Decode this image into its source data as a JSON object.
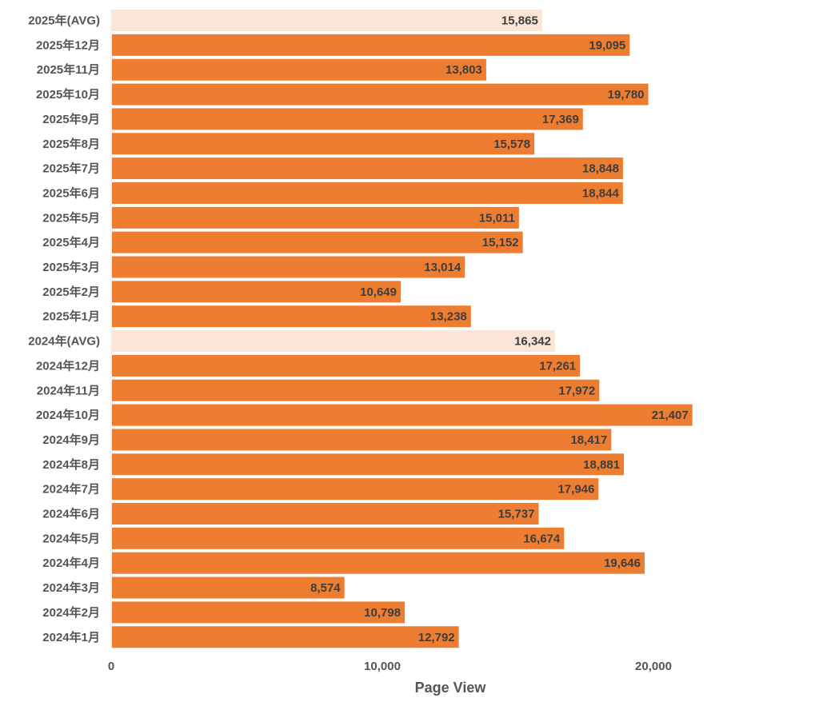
{
  "chart_data": {
    "type": "bar",
    "orientation": "horizontal",
    "title": "",
    "xlabel": "Page View",
    "ylabel": "",
    "xlim": [
      0,
      26500
    ],
    "xticks": [
      0,
      10000,
      20000
    ],
    "xtick_labels": [
      "0",
      "10,000",
      "20,000"
    ],
    "grid": false,
    "colors": {
      "month": "#ed7d31",
      "average": "#fbe5d6",
      "label_text": "#3d3d3d",
      "axis_text": "#555555"
    },
    "categories": [
      "2025年(AVG)",
      "2025年12月",
      "2025年11月",
      "2025年10月",
      "2025年9月",
      "2025年8月",
      "2025年7月",
      "2025年6月",
      "2025年5月",
      "2025年4月",
      "2025年3月",
      "2025年2月",
      "2025年1月",
      "2024年(AVG)",
      "2024年12月",
      "2024年11月",
      "2024年10月",
      "2024年9月",
      "2024年8月",
      "2024年7月",
      "2024年6月",
      "2024年5月",
      "2024年4月",
      "2024年3月",
      "2024年2月",
      "2024年1月"
    ],
    "values": [
      15865,
      19095,
      13803,
      19780,
      17369,
      15578,
      18848,
      18844,
      15011,
      15152,
      13014,
      10649,
      13238,
      16342,
      17261,
      17972,
      21407,
      18417,
      18881,
      17946,
      15737,
      16674,
      19646,
      8574,
      10798,
      12792
    ],
    "value_labels": [
      "15,865",
      "19,095",
      "13,803",
      "19,780",
      "17,369",
      "15,578",
      "18,848",
      "18,844",
      "15,011",
      "15,152",
      "13,014",
      "10,649",
      "13,238",
      "16,342",
      "17,261",
      "17,972",
      "21,407",
      "18,417",
      "18,881",
      "17,946",
      "15,737",
      "16,674",
      "19,646",
      "8,574",
      "10,798",
      "12,792"
    ],
    "is_average": [
      true,
      false,
      false,
      false,
      false,
      false,
      false,
      false,
      false,
      false,
      false,
      false,
      false,
      true,
      false,
      false,
      false,
      false,
      false,
      false,
      false,
      false,
      false,
      false,
      false,
      false
    ]
  }
}
